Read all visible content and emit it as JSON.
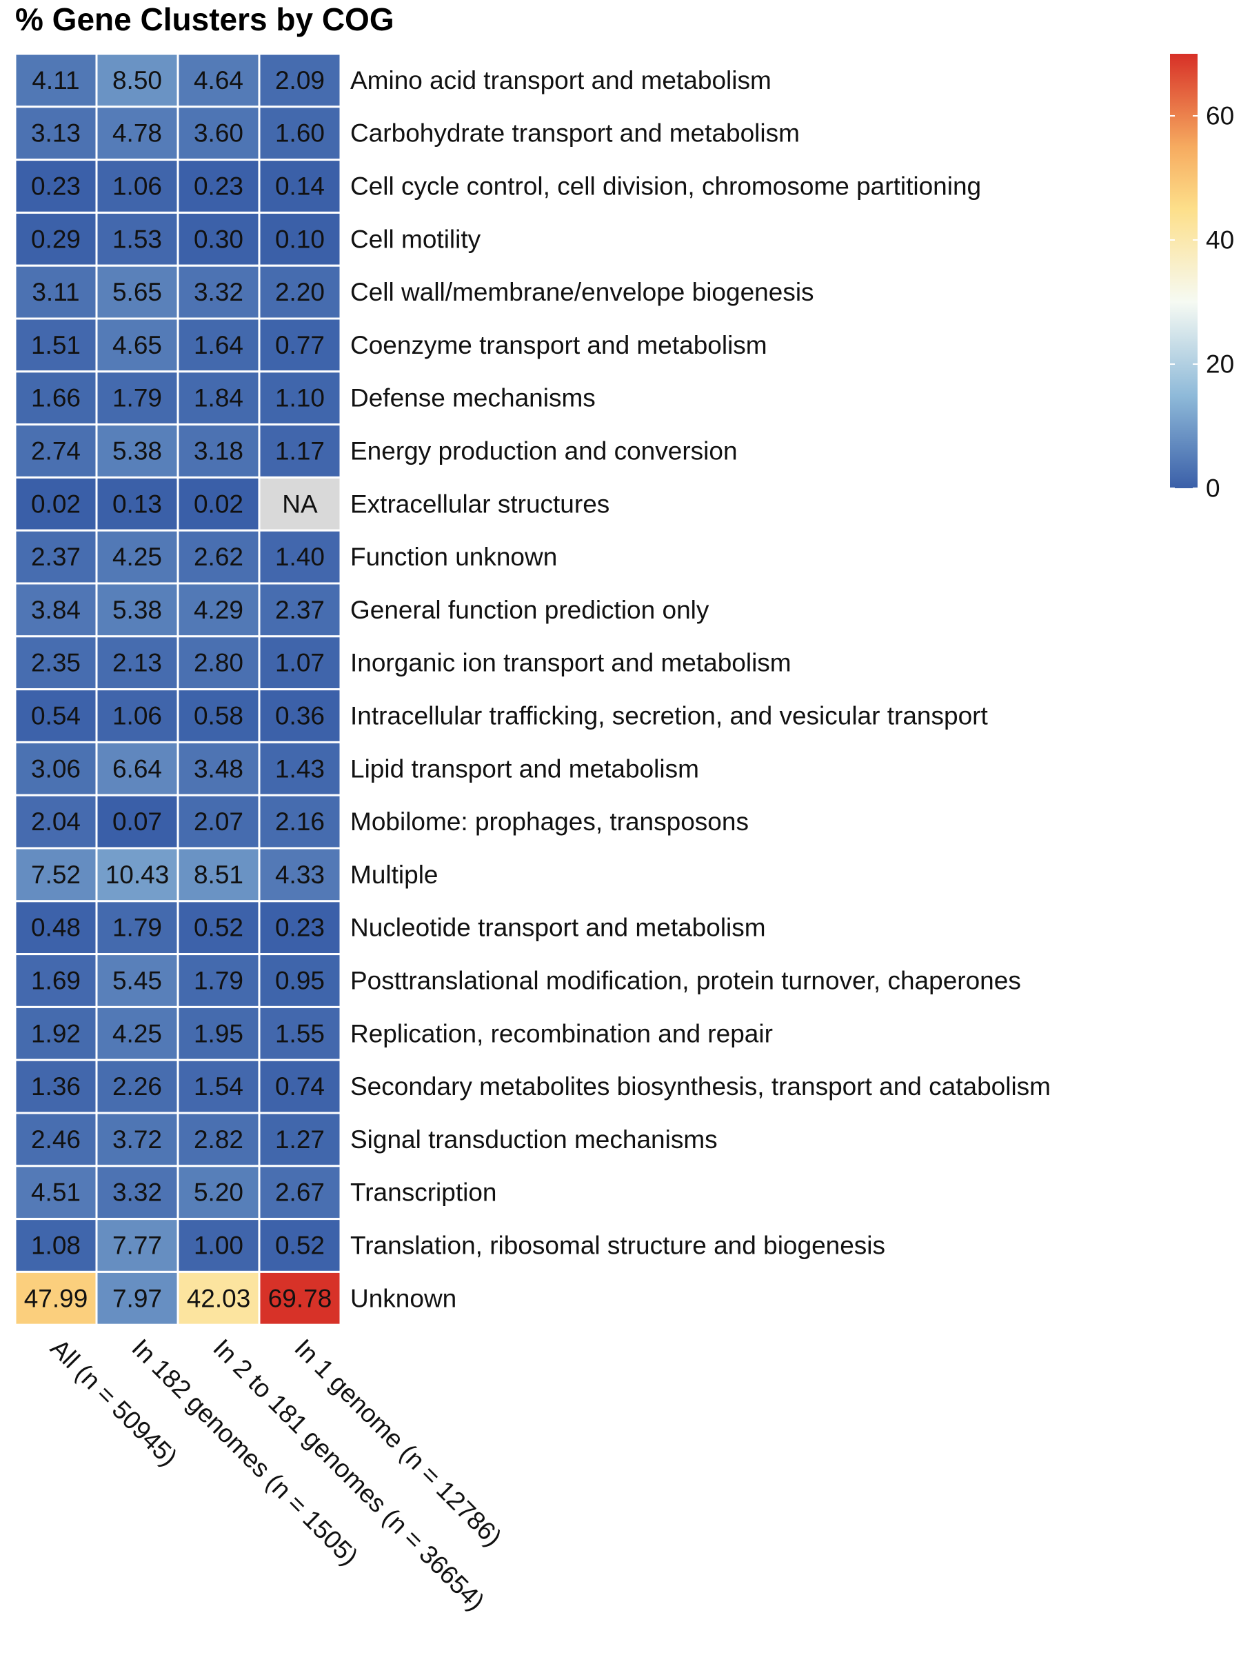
{
  "chart_data": {
    "type": "heatmap",
    "title": "% Gene Clusters by COG",
    "columns": [
      "All (n = 50945)",
      "In 182 genomes (n = 1505)",
      "In 2 to 181 genomes (n = 36654)",
      "In 1 genome (n = 12786)"
    ],
    "rows": [
      "Amino acid transport and metabolism",
      "Carbohydrate transport and metabolism",
      "Cell cycle control, cell division, chromosome partitioning",
      "Cell motility",
      "Cell wall/membrane/envelope biogenesis",
      "Coenzyme transport and metabolism",
      "Defense mechanisms",
      "Energy production and conversion",
      "Extracellular structures",
      "Function unknown",
      "General function prediction only",
      "Inorganic ion transport and metabolism",
      "Intracellular trafficking, secretion, and vesicular transport",
      "Lipid transport and metabolism",
      "Mobilome: prophages, transposons",
      "Multiple",
      "Nucleotide transport and metabolism",
      "Posttranslational modification, protein turnover, chaperones",
      "Replication, recombination and repair",
      "Secondary metabolites biosynthesis, transport and catabolism",
      "Signal transduction mechanisms",
      "Transcription",
      "Translation, ribosomal structure and biogenesis",
      "Unknown"
    ],
    "values": [
      [
        4.11,
        8.5,
        4.64,
        2.09
      ],
      [
        3.13,
        4.78,
        3.6,
        1.6
      ],
      [
        0.23,
        1.06,
        0.23,
        0.14
      ],
      [
        0.29,
        1.53,
        0.3,
        0.1
      ],
      [
        3.11,
        5.65,
        3.32,
        2.2
      ],
      [
        1.51,
        4.65,
        1.64,
        0.77
      ],
      [
        1.66,
        1.79,
        1.84,
        1.1
      ],
      [
        2.74,
        5.38,
        3.18,
        1.17
      ],
      [
        0.02,
        0.13,
        0.02,
        null
      ],
      [
        2.37,
        4.25,
        2.62,
        1.4
      ],
      [
        3.84,
        5.38,
        4.29,
        2.37
      ],
      [
        2.35,
        2.13,
        2.8,
        1.07
      ],
      [
        0.54,
        1.06,
        0.58,
        0.36
      ],
      [
        3.06,
        6.64,
        3.48,
        1.43
      ],
      [
        2.04,
        0.07,
        2.07,
        2.16
      ],
      [
        7.52,
        10.43,
        8.51,
        4.33
      ],
      [
        0.48,
        1.79,
        0.52,
        0.23
      ],
      [
        1.69,
        5.45,
        1.79,
        0.95
      ],
      [
        1.92,
        4.25,
        1.95,
        1.55
      ],
      [
        1.36,
        2.26,
        1.54,
        0.74
      ],
      [
        2.46,
        3.72,
        2.82,
        1.27
      ],
      [
        4.51,
        3.32,
        5.2,
        2.67
      ],
      [
        1.08,
        7.77,
        1.0,
        0.52
      ],
      [
        47.99,
        7.97,
        42.03,
        69.78
      ]
    ],
    "cell_labels": [
      [
        "4.11",
        "8.50",
        "4.64",
        "2.09"
      ],
      [
        "3.13",
        "4.78",
        "3.60",
        "1.60"
      ],
      [
        "0.23",
        "1.06",
        "0.23",
        "0.14"
      ],
      [
        "0.29",
        "1.53",
        "0.30",
        "0.10"
      ],
      [
        "3.11",
        "5.65",
        "3.32",
        "2.20"
      ],
      [
        "1.51",
        "4.65",
        "1.64",
        "0.77"
      ],
      [
        "1.66",
        "1.79",
        "1.84",
        "1.10"
      ],
      [
        "2.74",
        "5.38",
        "3.18",
        "1.17"
      ],
      [
        "0.02",
        "0.13",
        "0.02",
        "NA"
      ],
      [
        "2.37",
        "4.25",
        "2.62",
        "1.40"
      ],
      [
        "3.84",
        "5.38",
        "4.29",
        "2.37"
      ],
      [
        "2.35",
        "2.13",
        "2.80",
        "1.07"
      ],
      [
        "0.54",
        "1.06",
        "0.58",
        "0.36"
      ],
      [
        "3.06",
        "6.64",
        "3.48",
        "1.43"
      ],
      [
        "2.04",
        "0.07",
        "2.07",
        "2.16"
      ],
      [
        "7.52",
        "10.43",
        "8.51",
        "4.33"
      ],
      [
        "0.48",
        "1.79",
        "0.52",
        "0.23"
      ],
      [
        "1.69",
        "5.45",
        "1.79",
        "0.95"
      ],
      [
        "1.92",
        "4.25",
        "1.95",
        "1.55"
      ],
      [
        "1.36",
        "2.26",
        "1.54",
        "0.74"
      ],
      [
        "2.46",
        "3.72",
        "2.82",
        "1.27"
      ],
      [
        "4.51",
        "3.32",
        "5.20",
        "2.67"
      ],
      [
        "1.08",
        "7.77",
        "1.00",
        "0.52"
      ],
      [
        "47.99",
        "7.97",
        "42.03",
        "69.78"
      ]
    ],
    "na_color": "#d9d9d9",
    "color_scale": {
      "range": [
        0,
        70
      ],
      "ticks": [
        0,
        20,
        40,
        60
      ],
      "colors": [
        "#3a5fa8",
        "#8fbad9",
        "#f6faf3",
        "#fddf8a",
        "#f6ab60",
        "#d73027"
      ],
      "stops": [
        0,
        15,
        30,
        45,
        55,
        70
      ]
    },
    "legend_placement": "top-right"
  }
}
